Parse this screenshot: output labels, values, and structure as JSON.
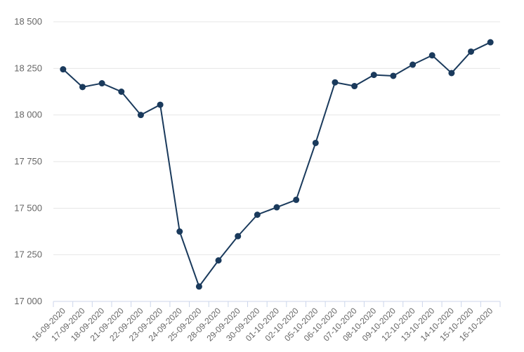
{
  "chart_data": {
    "type": "line",
    "title": "",
    "xlabel": "",
    "ylabel": "",
    "ylim": [
      17000,
      18500
    ],
    "yticks": [
      17000,
      17250,
      17500,
      17750,
      18000,
      18250,
      18500
    ],
    "ytick_labels": [
      "17 000",
      "17 250",
      "17 500",
      "17 750",
      "18 000",
      "18 250",
      "18 500"
    ],
    "grid": true,
    "legend": "none",
    "categories": [
      "16-09-2020",
      "17-09-2020",
      "18-09-2020",
      "21-09-2020",
      "22-09-2020",
      "23-09-2020",
      "24-09-2020",
      "25-09-2020",
      "28-09-2020",
      "29-09-2020",
      "30-09-2020",
      "01-10-2020",
      "02-10-2020",
      "05-10-2020",
      "06-10-2020",
      "07-10-2020",
      "08-10-2020",
      "09-10-2020",
      "12-10-2020",
      "13-10-2020",
      "14-10-2020",
      "15-10-2020",
      "16-10-2020"
    ],
    "series": [
      {
        "values": [
          18245,
          18150,
          18170,
          18125,
          18000,
          18055,
          17375,
          17080,
          17220,
          17350,
          17465,
          17505,
          17545,
          17850,
          18175,
          18155,
          18215,
          18210,
          18270,
          18320,
          18225,
          18340,
          18390
        ]
      }
    ],
    "colors": {
      "series": "#1a3a5c",
      "grid": "#e6e6e6",
      "axis": "#ccd6eb",
      "text": "#666666"
    }
  }
}
